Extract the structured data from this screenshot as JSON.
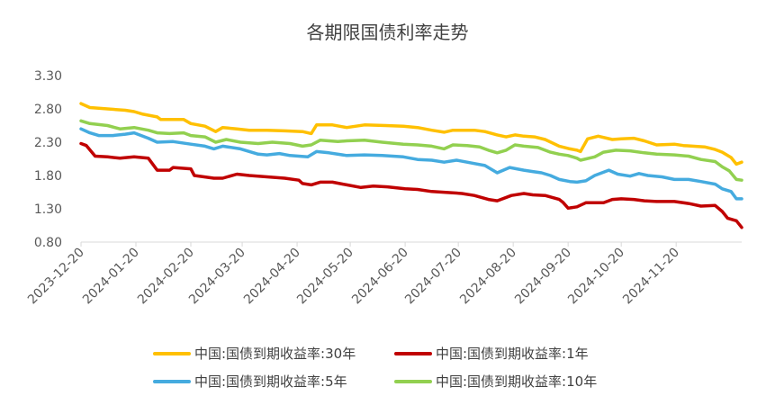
{
  "chart_data": {
    "type": "line",
    "title": "各期限国债利率走势",
    "xlabel": "",
    "ylabel": "",
    "ylim": [
      0.8,
      3.3
    ],
    "yticks": [
      "0.80",
      "1.30",
      "1.80",
      "2.30",
      "2.80",
      "3.30"
    ],
    "grid": false,
    "legend_position": "bottom",
    "x_tick_labels": [
      "2023-12-20",
      "2024-01-20",
      "2024-02-20",
      "2024-03-20",
      "2024-04-20",
      "2024-05-20",
      "2024-06-20",
      "2024-07-20",
      "2024-08-20",
      "2024-09-20",
      "2024-10-20",
      "2024-11-20"
    ],
    "x_tick_days": [
      0,
      31,
      62,
      91,
      122,
      152,
      183,
      213,
      244,
      275,
      305,
      336
    ],
    "x_range_days": [
      0,
      373
    ],
    "series": [
      {
        "name": "中国:国债到期收益率:30年",
        "color": "#FFC000",
        "points": [
          [
            0,
            2.88
          ],
          [
            5,
            2.82
          ],
          [
            15,
            2.8
          ],
          [
            25,
            2.78
          ],
          [
            30,
            2.76
          ],
          [
            35,
            2.72
          ],
          [
            43,
            2.68
          ],
          [
            45,
            2.64
          ],
          [
            58,
            2.64
          ],
          [
            62,
            2.58
          ],
          [
            70,
            2.54
          ],
          [
            76,
            2.46
          ],
          [
            80,
            2.52
          ],
          [
            88,
            2.5
          ],
          [
            95,
            2.48
          ],
          [
            105,
            2.48
          ],
          [
            115,
            2.47
          ],
          [
            125,
            2.46
          ],
          [
            130,
            2.43
          ],
          [
            133,
            2.56
          ],
          [
            142,
            2.56
          ],
          [
            150,
            2.52
          ],
          [
            160,
            2.56
          ],
          [
            172,
            2.55
          ],
          [
            182,
            2.54
          ],
          [
            190,
            2.52
          ],
          [
            198,
            2.48
          ],
          [
            205,
            2.45
          ],
          [
            210,
            2.48
          ],
          [
            222,
            2.48
          ],
          [
            228,
            2.46
          ],
          [
            235,
            2.41
          ],
          [
            240,
            2.38
          ],
          [
            245,
            2.41
          ],
          [
            250,
            2.39
          ],
          [
            256,
            2.38
          ],
          [
            262,
            2.34
          ],
          [
            270,
            2.24
          ],
          [
            276,
            2.2
          ],
          [
            280,
            2.18
          ],
          [
            282,
            2.16
          ],
          [
            286,
            2.35
          ],
          [
            292,
            2.39
          ],
          [
            300,
            2.34
          ],
          [
            305,
            2.35
          ],
          [
            312,
            2.36
          ],
          [
            318,
            2.32
          ],
          [
            325,
            2.26
          ],
          [
            335,
            2.27
          ],
          [
            340,
            2.25
          ],
          [
            352,
            2.23
          ],
          [
            358,
            2.19
          ],
          [
            362,
            2.15
          ],
          [
            367,
            2.07
          ],
          [
            370,
            1.97
          ],
          [
            373,
            2.0
          ]
        ]
      },
      {
        "name": "中国:国债到期收益率:1年",
        "color": "#C00000",
        "points": [
          [
            0,
            2.28
          ],
          [
            3,
            2.25
          ],
          [
            8,
            2.09
          ],
          [
            15,
            2.08
          ],
          [
            22,
            2.06
          ],
          [
            30,
            2.08
          ],
          [
            38,
            2.06
          ],
          [
            43,
            1.88
          ],
          [
            50,
            1.88
          ],
          [
            52,
            1.92
          ],
          [
            62,
            1.9
          ],
          [
            64,
            1.8
          ],
          [
            75,
            1.76
          ],
          [
            80,
            1.76
          ],
          [
            88,
            1.82
          ],
          [
            95,
            1.8
          ],
          [
            105,
            1.78
          ],
          [
            115,
            1.76
          ],
          [
            123,
            1.73
          ],
          [
            125,
            1.68
          ],
          [
            130,
            1.66
          ],
          [
            135,
            1.7
          ],
          [
            142,
            1.7
          ],
          [
            150,
            1.66
          ],
          [
            158,
            1.62
          ],
          [
            165,
            1.64
          ],
          [
            173,
            1.63
          ],
          [
            183,
            1.6
          ],
          [
            190,
            1.59
          ],
          [
            198,
            1.56
          ],
          [
            210,
            1.54
          ],
          [
            215,
            1.53
          ],
          [
            222,
            1.5
          ],
          [
            230,
            1.44
          ],
          [
            235,
            1.42
          ],
          [
            243,
            1.5
          ],
          [
            250,
            1.53
          ],
          [
            255,
            1.51
          ],
          [
            262,
            1.5
          ],
          [
            270,
            1.44
          ],
          [
            272,
            1.4
          ],
          [
            275,
            1.31
          ],
          [
            280,
            1.33
          ],
          [
            285,
            1.39
          ],
          [
            295,
            1.39
          ],
          [
            300,
            1.44
          ],
          [
            305,
            1.45
          ],
          [
            312,
            1.44
          ],
          [
            318,
            1.42
          ],
          [
            325,
            1.41
          ],
          [
            335,
            1.41
          ],
          [
            343,
            1.38
          ],
          [
            350,
            1.34
          ],
          [
            358,
            1.35
          ],
          [
            362,
            1.26
          ],
          [
            365,
            1.16
          ],
          [
            370,
            1.12
          ],
          [
            373,
            1.02
          ]
        ]
      },
      {
        "name": "中国:国债到期收益率:5年",
        "color": "#45ABDF",
        "points": [
          [
            0,
            2.5
          ],
          [
            5,
            2.44
          ],
          [
            10,
            2.4
          ],
          [
            18,
            2.4
          ],
          [
            25,
            2.42
          ],
          [
            30,
            2.44
          ],
          [
            38,
            2.36
          ],
          [
            43,
            2.3
          ],
          [
            52,
            2.31
          ],
          [
            62,
            2.27
          ],
          [
            70,
            2.24
          ],
          [
            75,
            2.2
          ],
          [
            80,
            2.24
          ],
          [
            90,
            2.2
          ],
          [
            100,
            2.12
          ],
          [
            105,
            2.11
          ],
          [
            112,
            2.13
          ],
          [
            118,
            2.1
          ],
          [
            123,
            2.09
          ],
          [
            128,
            2.08
          ],
          [
            133,
            2.16
          ],
          [
            140,
            2.14
          ],
          [
            150,
            2.1
          ],
          [
            160,
            2.11
          ],
          [
            170,
            2.1
          ],
          [
            182,
            2.08
          ],
          [
            190,
            2.04
          ],
          [
            198,
            2.03
          ],
          [
            205,
            2.0
          ],
          [
            212,
            2.03
          ],
          [
            222,
            1.98
          ],
          [
            228,
            1.95
          ],
          [
            235,
            1.84
          ],
          [
            242,
            1.92
          ],
          [
            250,
            1.88
          ],
          [
            255,
            1.86
          ],
          [
            260,
            1.84
          ],
          [
            265,
            1.8
          ],
          [
            270,
            1.74
          ],
          [
            276,
            1.71
          ],
          [
            280,
            1.7
          ],
          [
            285,
            1.72
          ],
          [
            290,
            1.8
          ],
          [
            298,
            1.88
          ],
          [
            303,
            1.82
          ],
          [
            310,
            1.79
          ],
          [
            315,
            1.83
          ],
          [
            320,
            1.8
          ],
          [
            328,
            1.78
          ],
          [
            335,
            1.74
          ],
          [
            343,
            1.74
          ],
          [
            350,
            1.71
          ],
          [
            358,
            1.67
          ],
          [
            362,
            1.6
          ],
          [
            367,
            1.56
          ],
          [
            370,
            1.45
          ],
          [
            373,
            1.45
          ]
        ]
      },
      {
        "name": "中国:国债到期收益率:10年",
        "color": "#92D050",
        "points": [
          [
            0,
            2.62
          ],
          [
            5,
            2.58
          ],
          [
            15,
            2.55
          ],
          [
            22,
            2.5
          ],
          [
            30,
            2.52
          ],
          [
            38,
            2.48
          ],
          [
            43,
            2.44
          ],
          [
            50,
            2.43
          ],
          [
            58,
            2.44
          ],
          [
            62,
            2.4
          ],
          [
            70,
            2.38
          ],
          [
            76,
            2.3
          ],
          [
            82,
            2.34
          ],
          [
            90,
            2.3
          ],
          [
            100,
            2.28
          ],
          [
            108,
            2.3
          ],
          [
            118,
            2.28
          ],
          [
            125,
            2.24
          ],
          [
            130,
            2.26
          ],
          [
            135,
            2.33
          ],
          [
            145,
            2.31
          ],
          [
            150,
            2.32
          ],
          [
            160,
            2.33
          ],
          [
            170,
            2.3
          ],
          [
            182,
            2.27
          ],
          [
            190,
            2.26
          ],
          [
            198,
            2.24
          ],
          [
            205,
            2.2
          ],
          [
            210,
            2.26
          ],
          [
            218,
            2.25
          ],
          [
            225,
            2.23
          ],
          [
            230,
            2.18
          ],
          [
            235,
            2.14
          ],
          [
            240,
            2.18
          ],
          [
            245,
            2.26
          ],
          [
            250,
            2.24
          ],
          [
            258,
            2.22
          ],
          [
            265,
            2.15
          ],
          [
            270,
            2.12
          ],
          [
            275,
            2.1
          ],
          [
            280,
            2.06
          ],
          [
            282,
            2.03
          ],
          [
            290,
            2.08
          ],
          [
            295,
            2.15
          ],
          [
            302,
            2.18
          ],
          [
            310,
            2.17
          ],
          [
            318,
            2.14
          ],
          [
            325,
            2.12
          ],
          [
            335,
            2.11
          ],
          [
            343,
            2.09
          ],
          [
            350,
            2.04
          ],
          [
            358,
            2.01
          ],
          [
            362,
            1.93
          ],
          [
            366,
            1.87
          ],
          [
            370,
            1.74
          ],
          [
            373,
            1.73
          ]
        ]
      }
    ]
  }
}
